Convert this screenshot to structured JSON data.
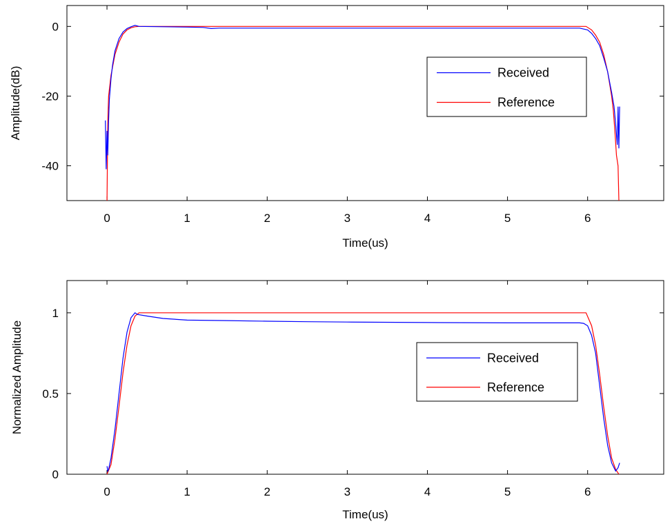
{
  "chart_data": [
    {
      "type": "line",
      "xlabel": "Time(us)",
      "ylabel": "Amplitude(dB)",
      "xlim": [
        -0.5,
        6.95
      ],
      "ylim": [
        -50,
        6
      ],
      "xticks": [
        0,
        1,
        2,
        3,
        4,
        5,
        6
      ],
      "xtick_labels": [
        "0",
        "1",
        "2",
        "3",
        "4",
        "5",
        "6"
      ],
      "yticks": [
        0,
        -20,
        -40
      ],
      "ytick_labels": [
        "0",
        "-20",
        "-40"
      ],
      "grid": false,
      "legend_placement": "right-center",
      "series": [
        {
          "name": "Received",
          "color": "#0000ff",
          "x": [
            -0.02,
            -0.01,
            0.0,
            0.01,
            0.02,
            0.03,
            0.05,
            0.07,
            0.1,
            0.15,
            0.2,
            0.25,
            0.3,
            0.35,
            0.4,
            1.0,
            1.2,
            1.3,
            1.4,
            2.0,
            3.0,
            4.0,
            5.0,
            5.9,
            6.0,
            6.05,
            6.1,
            6.15,
            6.2,
            6.25,
            6.3,
            6.33,
            6.35,
            6.37,
            6.38,
            6.39,
            6.4
          ],
          "y": [
            -27,
            -41,
            -30,
            -37,
            -27,
            -21,
            -15,
            -11,
            -7,
            -3.5,
            -1.6,
            -0.6,
            -0.1,
            0.3,
            0.0,
            -0.2,
            -0.3,
            -0.6,
            -0.5,
            -0.5,
            -0.5,
            -0.5,
            -0.5,
            -0.5,
            -1.0,
            -2.0,
            -3.5,
            -5.5,
            -9.0,
            -13.0,
            -19.0,
            -23.0,
            -28.0,
            -34.0,
            -23.0,
            -35.0,
            -23.0
          ]
        },
        {
          "name": "Reference",
          "color": "#ff0000",
          "x": [
            0.0,
            0.01,
            0.02,
            0.05,
            0.1,
            0.15,
            0.2,
            0.25,
            0.3,
            0.35,
            0.4,
            3.0,
            5.98,
            6.05,
            6.1,
            6.15,
            6.2,
            6.25,
            6.3,
            6.32,
            6.34,
            6.36,
            6.38,
            6.39
          ],
          "y": [
            -50,
            -28,
            -20,
            -14,
            -8,
            -4.5,
            -2.2,
            -1.0,
            -0.4,
            -0.1,
            0.0,
            0.0,
            0.0,
            -1.0,
            -2.5,
            -4.5,
            -8.0,
            -13.0,
            -20.0,
            -24.0,
            -30.0,
            -37.0,
            -40.0,
            -50.0
          ]
        }
      ]
    },
    {
      "type": "line",
      "xlabel": "Time(us)",
      "ylabel": "Normalized Amplitude",
      "xlim": [
        -0.5,
        6.95
      ],
      "ylim": [
        0,
        1.2
      ],
      "xticks": [
        0,
        1,
        2,
        3,
        4,
        5,
        6
      ],
      "xtick_labels": [
        "0",
        "1",
        "2",
        "3",
        "4",
        "5",
        "6"
      ],
      "yticks": [
        0,
        0.5,
        1
      ],
      "ytick_labels": [
        "0",
        "0.5",
        "1"
      ],
      "grid": false,
      "legend_placement": "right-center",
      "series": [
        {
          "name": "Received",
          "color": "#0000ff",
          "x": [
            0.0,
            0.01,
            0.02,
            0.05,
            0.1,
            0.15,
            0.2,
            0.25,
            0.3,
            0.35,
            0.38,
            0.5,
            0.7,
            1.0,
            1.5,
            2.0,
            2.5,
            3.0,
            4.0,
            5.0,
            5.9,
            5.95,
            6.0,
            6.05,
            6.1,
            6.15,
            6.2,
            6.25,
            6.3,
            6.35,
            6.38,
            6.4
          ],
          "y": [
            0.05,
            0.02,
            0.03,
            0.1,
            0.28,
            0.5,
            0.72,
            0.88,
            0.97,
            1.0,
            0.99,
            0.98,
            0.965,
            0.955,
            0.952,
            0.948,
            0.945,
            0.943,
            0.94,
            0.938,
            0.938,
            0.935,
            0.92,
            0.86,
            0.75,
            0.55,
            0.35,
            0.18,
            0.07,
            0.02,
            0.04,
            0.07
          ]
        },
        {
          "name": "Reference",
          "color": "#ff0000",
          "x": [
            0.0,
            0.05,
            0.1,
            0.15,
            0.2,
            0.25,
            0.3,
            0.35,
            0.4,
            3.0,
            5.98,
            6.05,
            6.1,
            6.15,
            6.2,
            6.25,
            6.3,
            6.35,
            6.39
          ],
          "y": [
            0.0,
            0.06,
            0.22,
            0.42,
            0.63,
            0.8,
            0.92,
            0.98,
            1.0,
            1.0,
            1.0,
            0.92,
            0.8,
            0.62,
            0.42,
            0.24,
            0.1,
            0.03,
            0.0
          ]
        }
      ]
    }
  ]
}
